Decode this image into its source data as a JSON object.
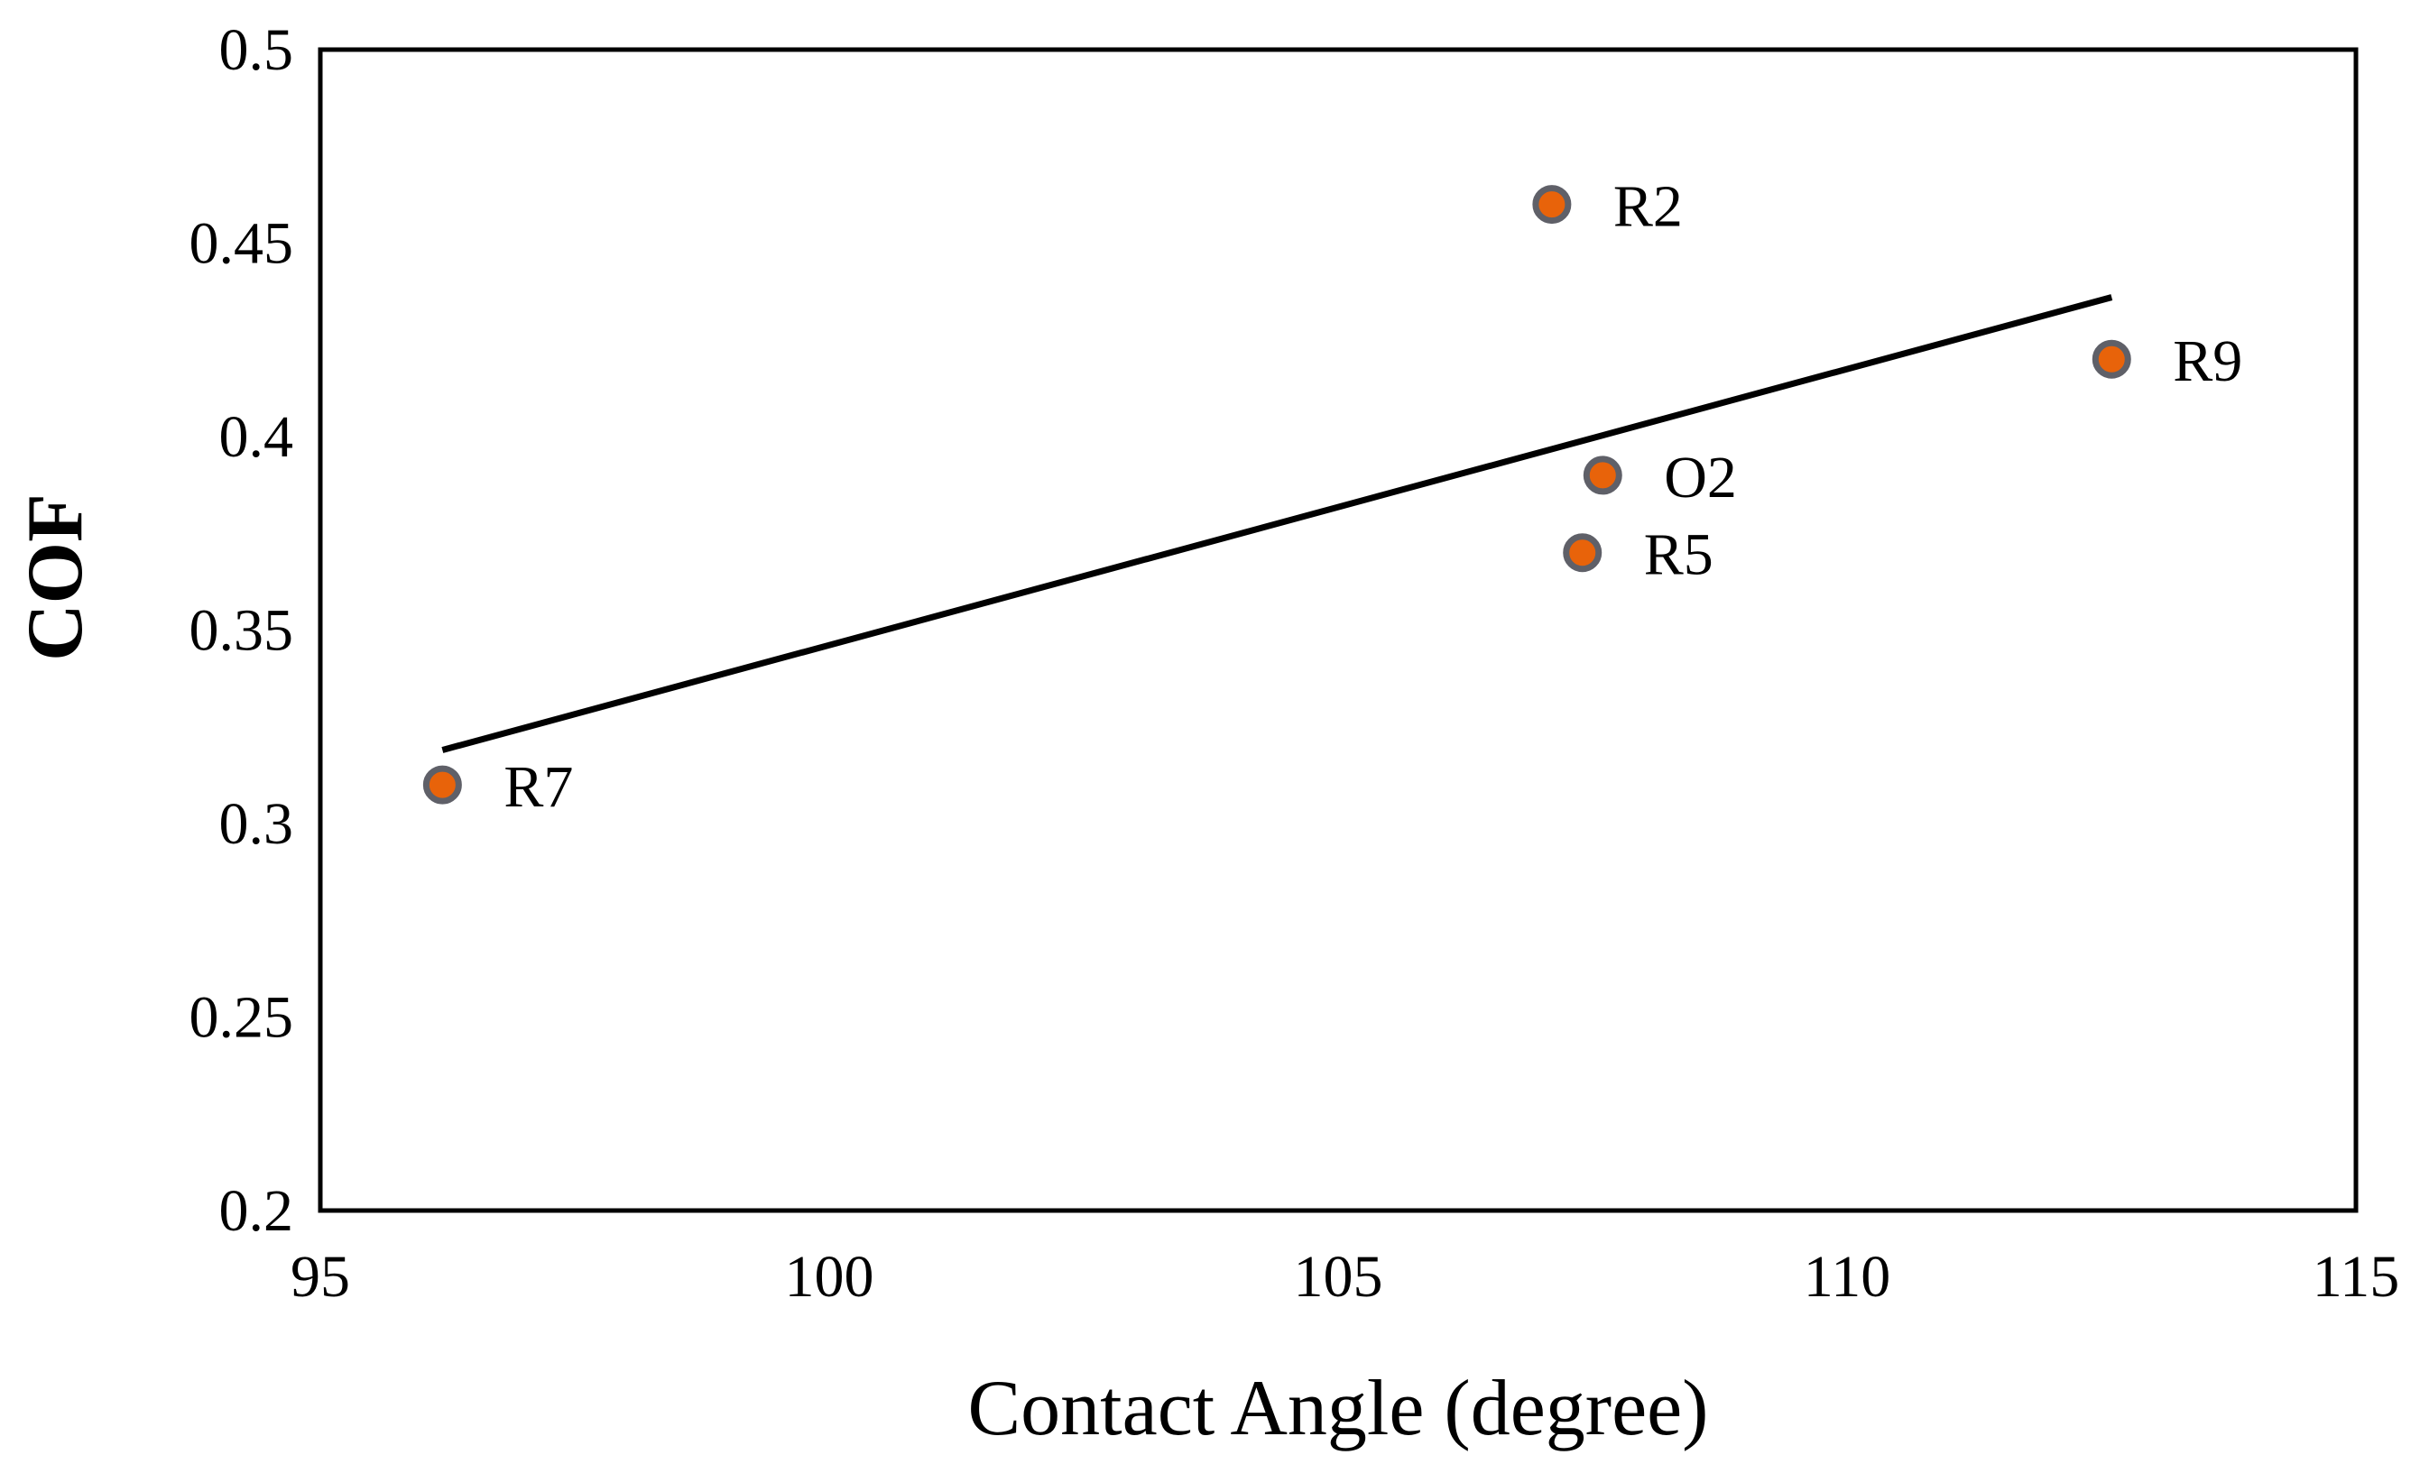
{
  "chart_data": {
    "type": "scatter",
    "xlabel": "Contact Angle (degree)",
    "ylabel": "COF",
    "xlim": [
      95,
      115
    ],
    "ylim": [
      0.2,
      0.5
    ],
    "x_ticks": [
      "95",
      "100",
      "105",
      "110",
      "115"
    ],
    "y_ticks": [
      "0.2",
      "0.25",
      "0.3",
      "0.35",
      "0.4",
      "0.45",
      "0.5"
    ],
    "grid": false,
    "legend": "none",
    "points": [
      {
        "label": "R2",
        "x": 107.1,
        "y": 0.46
      },
      {
        "label": "R9",
        "x": 112.6,
        "y": 0.42
      },
      {
        "label": "O2",
        "x": 107.6,
        "y": 0.39
      },
      {
        "label": "R5",
        "x": 107.4,
        "y": 0.37
      },
      {
        "label": "R7",
        "x": 96.2,
        "y": 0.31
      }
    ],
    "trendline": {
      "type": "linear",
      "x": [
        96.2,
        112.6
      ],
      "y": [
        0.319,
        0.436
      ]
    },
    "colors": {
      "marker_fill": "#E8630A",
      "marker_edge": "#5F6068",
      "trendline": "#000000",
      "frame": "#000000"
    }
  }
}
